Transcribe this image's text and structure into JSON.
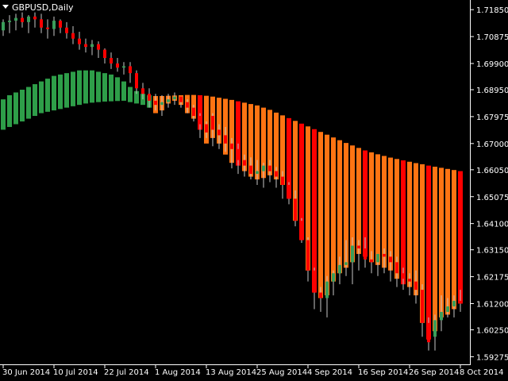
{
  "window": {
    "title": "GBPUSD,Daily"
  },
  "colors": {
    "background": "#000000",
    "axis": "#ffffff",
    "text": "#ffffff",
    "bar_green": "#2e9e49",
    "bar_red": "#ff0000",
    "bar_orange": "#ff7413",
    "candle_green": "#3a9e5a",
    "candle_red": "#ff0000",
    "wick": "#c8c8c8"
  },
  "chart_data": {
    "type": "candlestick_overlay",
    "symbol": "GBPUSD",
    "timeframe": "Daily",
    "y_axis": {
      "ylim": [
        1.59,
        1.722
      ],
      "ticks": [
        "1.71850",
        "1.70875",
        "1.69900",
        "1.68950",
        "1.67975",
        "1.67000",
        "1.66050",
        "1.65075",
        "1.64100",
        "1.63150",
        "1.62175",
        "1.61200",
        "1.60250",
        "1.59275"
      ]
    },
    "x_axis": {
      "labels": [
        "30 Jun 2014",
        "10 Jul 2014",
        "22 Jul 2014",
        "1 Aug 2014",
        "13 Aug 2014",
        "25 Aug 2014",
        "4 Sep 2014",
        "16 Sep 2014",
        "26 Sep 2014",
        "8 Oct 2014"
      ],
      "label_bar_index": [
        0,
        8,
        16,
        24,
        32,
        40,
        48,
        56,
        64,
        72
      ]
    },
    "candles": {
      "open": [
        1.711,
        1.714,
        1.7145,
        1.7155,
        1.714,
        1.716,
        1.715,
        1.712,
        1.7115,
        1.7145,
        1.712,
        1.71,
        1.708,
        1.706,
        1.705,
        1.706,
        1.704,
        1.701,
        1.699,
        1.6975,
        1.698,
        1.6955,
        1.69,
        1.688,
        1.6855,
        1.684,
        1.685,
        1.686,
        1.687,
        1.685,
        1.683,
        1.68,
        1.677,
        1.68,
        1.675,
        1.673,
        1.67,
        1.668,
        1.664,
        1.662,
        1.659,
        1.66,
        1.662,
        1.66,
        1.658,
        1.655,
        1.65,
        1.642,
        1.635,
        1.624,
        1.616,
        1.614,
        1.62,
        1.623,
        1.626,
        1.627,
        1.633,
        1.632,
        1.628,
        1.627,
        1.63,
        1.629,
        1.627,
        1.623,
        1.621,
        1.62,
        1.617,
        1.605,
        1.6,
        1.606,
        1.609,
        1.611,
        1.613
      ],
      "high": [
        1.715,
        1.7165,
        1.717,
        1.7175,
        1.7165,
        1.7175,
        1.717,
        1.715,
        1.716,
        1.715,
        1.714,
        1.7125,
        1.7105,
        1.708,
        1.7075,
        1.707,
        1.7045,
        1.703,
        1.701,
        1.6995,
        1.6995,
        1.6965,
        1.692,
        1.69,
        1.688,
        1.6875,
        1.688,
        1.6885,
        1.687,
        1.686,
        1.684,
        1.681,
        1.678,
        1.681,
        1.677,
        1.676,
        1.672,
        1.67,
        1.666,
        1.665,
        1.664,
        1.663,
        1.664,
        1.6615,
        1.66,
        1.656,
        1.653,
        1.643,
        1.636,
        1.625,
        1.618,
        1.622,
        1.624,
        1.629,
        1.635,
        1.636,
        1.635,
        1.636,
        1.631,
        1.63,
        1.632,
        1.631,
        1.629,
        1.625,
        1.623,
        1.624,
        1.619,
        1.607,
        1.608,
        1.615,
        1.614,
        1.615,
        1.617
      ],
      "low": [
        1.709,
        1.71,
        1.711,
        1.712,
        1.71,
        1.712,
        1.71,
        1.708,
        1.709,
        1.71,
        1.708,
        1.706,
        1.704,
        1.703,
        1.702,
        1.701,
        1.699,
        1.697,
        1.696,
        1.695,
        1.692,
        1.688,
        1.686,
        1.683,
        1.682,
        1.68,
        1.683,
        1.684,
        1.683,
        1.681,
        1.678,
        1.672,
        1.672,
        1.669,
        1.668,
        1.667,
        1.661,
        1.659,
        1.658,
        1.657,
        1.655,
        1.654,
        1.656,
        1.654,
        1.65,
        1.648,
        1.64,
        1.634,
        1.62,
        1.61,
        1.609,
        1.607,
        1.615,
        1.619,
        1.622,
        1.619,
        1.624,
        1.625,
        1.623,
        1.622,
        1.623,
        1.62,
        1.618,
        1.617,
        1.615,
        1.612,
        1.6,
        1.595,
        1.595,
        1.602,
        1.607,
        1.607,
        1.609
      ],
      "close": [
        1.714,
        1.7145,
        1.7155,
        1.714,
        1.716,
        1.715,
        1.712,
        1.7115,
        1.7145,
        1.712,
        1.71,
        1.708,
        1.706,
        1.705,
        1.706,
        1.704,
        1.701,
        1.699,
        1.6975,
        1.698,
        1.6955,
        1.69,
        1.688,
        1.6855,
        1.684,
        1.685,
        1.686,
        1.687,
        1.685,
        1.683,
        1.68,
        1.677,
        1.674,
        1.675,
        1.673,
        1.67,
        1.668,
        1.664,
        1.662,
        1.659,
        1.66,
        1.662,
        1.66,
        1.658,
        1.655,
        1.65,
        1.642,
        1.635,
        1.624,
        1.616,
        1.614,
        1.62,
        1.623,
        1.626,
        1.627,
        1.633,
        1.632,
        1.628,
        1.627,
        1.63,
        1.629,
        1.627,
        1.623,
        1.621,
        1.62,
        1.617,
        1.605,
        1.598,
        1.606,
        1.609,
        1.611,
        1.613,
        1.612
      ]
    },
    "overlay_bars": {
      "top": [
        1.686,
        1.6875,
        1.6885,
        1.6895,
        1.6905,
        1.6915,
        1.6925,
        1.6935,
        1.6945,
        1.695,
        1.6955,
        1.696,
        1.6965,
        1.6965,
        1.6965,
        1.696,
        1.6955,
        1.695,
        1.694,
        1.6925,
        1.6905,
        1.689,
        1.688,
        1.6875,
        1.6872,
        1.6872,
        1.6873,
        1.6874,
        1.6875,
        1.6876,
        1.6876,
        1.6875,
        1.6873,
        1.687,
        1.6866,
        1.6862,
        1.6858,
        1.6853,
        1.6848,
        1.6843,
        1.6838,
        1.683,
        1.6822,
        1.6812,
        1.6802,
        1.6792,
        1.6782,
        1.6772,
        1.6762,
        1.6752,
        1.6742,
        1.6732,
        1.6722,
        1.6712,
        1.6702,
        1.6693,
        1.6684,
        1.6675,
        1.6668,
        1.6661,
        1.6655,
        1.6649,
        1.6644,
        1.6639,
        1.6634,
        1.6629,
        1.6625,
        1.662,
        1.6616,
        1.6612,
        1.6608,
        1.6604,
        1.66
      ],
      "bottom": [
        1.675,
        1.676,
        1.677,
        1.678,
        1.679,
        1.68,
        1.681,
        1.6815,
        1.682,
        1.6825,
        1.683,
        1.6835,
        1.684,
        1.6845,
        1.6848,
        1.685,
        1.6852,
        1.6853,
        1.6854,
        1.6855,
        1.685,
        1.6845,
        1.684,
        1.683,
        1.681,
        1.682,
        1.6845,
        1.6855,
        1.684,
        1.681,
        1.679,
        1.675,
        1.67,
        1.672,
        1.67,
        1.666,
        1.663,
        1.662,
        1.66,
        1.658,
        1.657,
        1.6575,
        1.6585,
        1.657,
        1.655,
        1.65,
        1.642,
        1.635,
        1.624,
        1.616,
        1.614,
        1.615,
        1.62,
        1.623,
        1.625,
        1.627,
        1.63,
        1.629,
        1.627,
        1.626,
        1.625,
        1.624,
        1.621,
        1.619,
        1.618,
        1.615,
        1.605,
        1.599,
        1.602,
        1.607,
        1.608,
        1.61,
        1.612
      ],
      "color": [
        "g",
        "g",
        "g",
        "g",
        "g",
        "g",
        "g",
        "g",
        "g",
        "g",
        "g",
        "g",
        "g",
        "g",
        "g",
        "g",
        "g",
        "g",
        "g",
        "g",
        "g",
        "g",
        "g",
        "g",
        "o",
        "o",
        "o",
        "o",
        "o",
        "o",
        "o",
        "r",
        "o",
        "o",
        "o",
        "o",
        "o",
        "r",
        "o",
        "o",
        "o",
        "o",
        "o",
        "o",
        "o",
        "r",
        "o",
        "r",
        "o",
        "r",
        "o",
        "o",
        "o",
        "o",
        "o",
        "o",
        "o",
        "r",
        "o",
        "o",
        "o",
        "o",
        "o",
        "r",
        "o",
        "o",
        "o",
        "r",
        "o",
        "o",
        "o",
        "o",
        "r"
      ]
    }
  }
}
